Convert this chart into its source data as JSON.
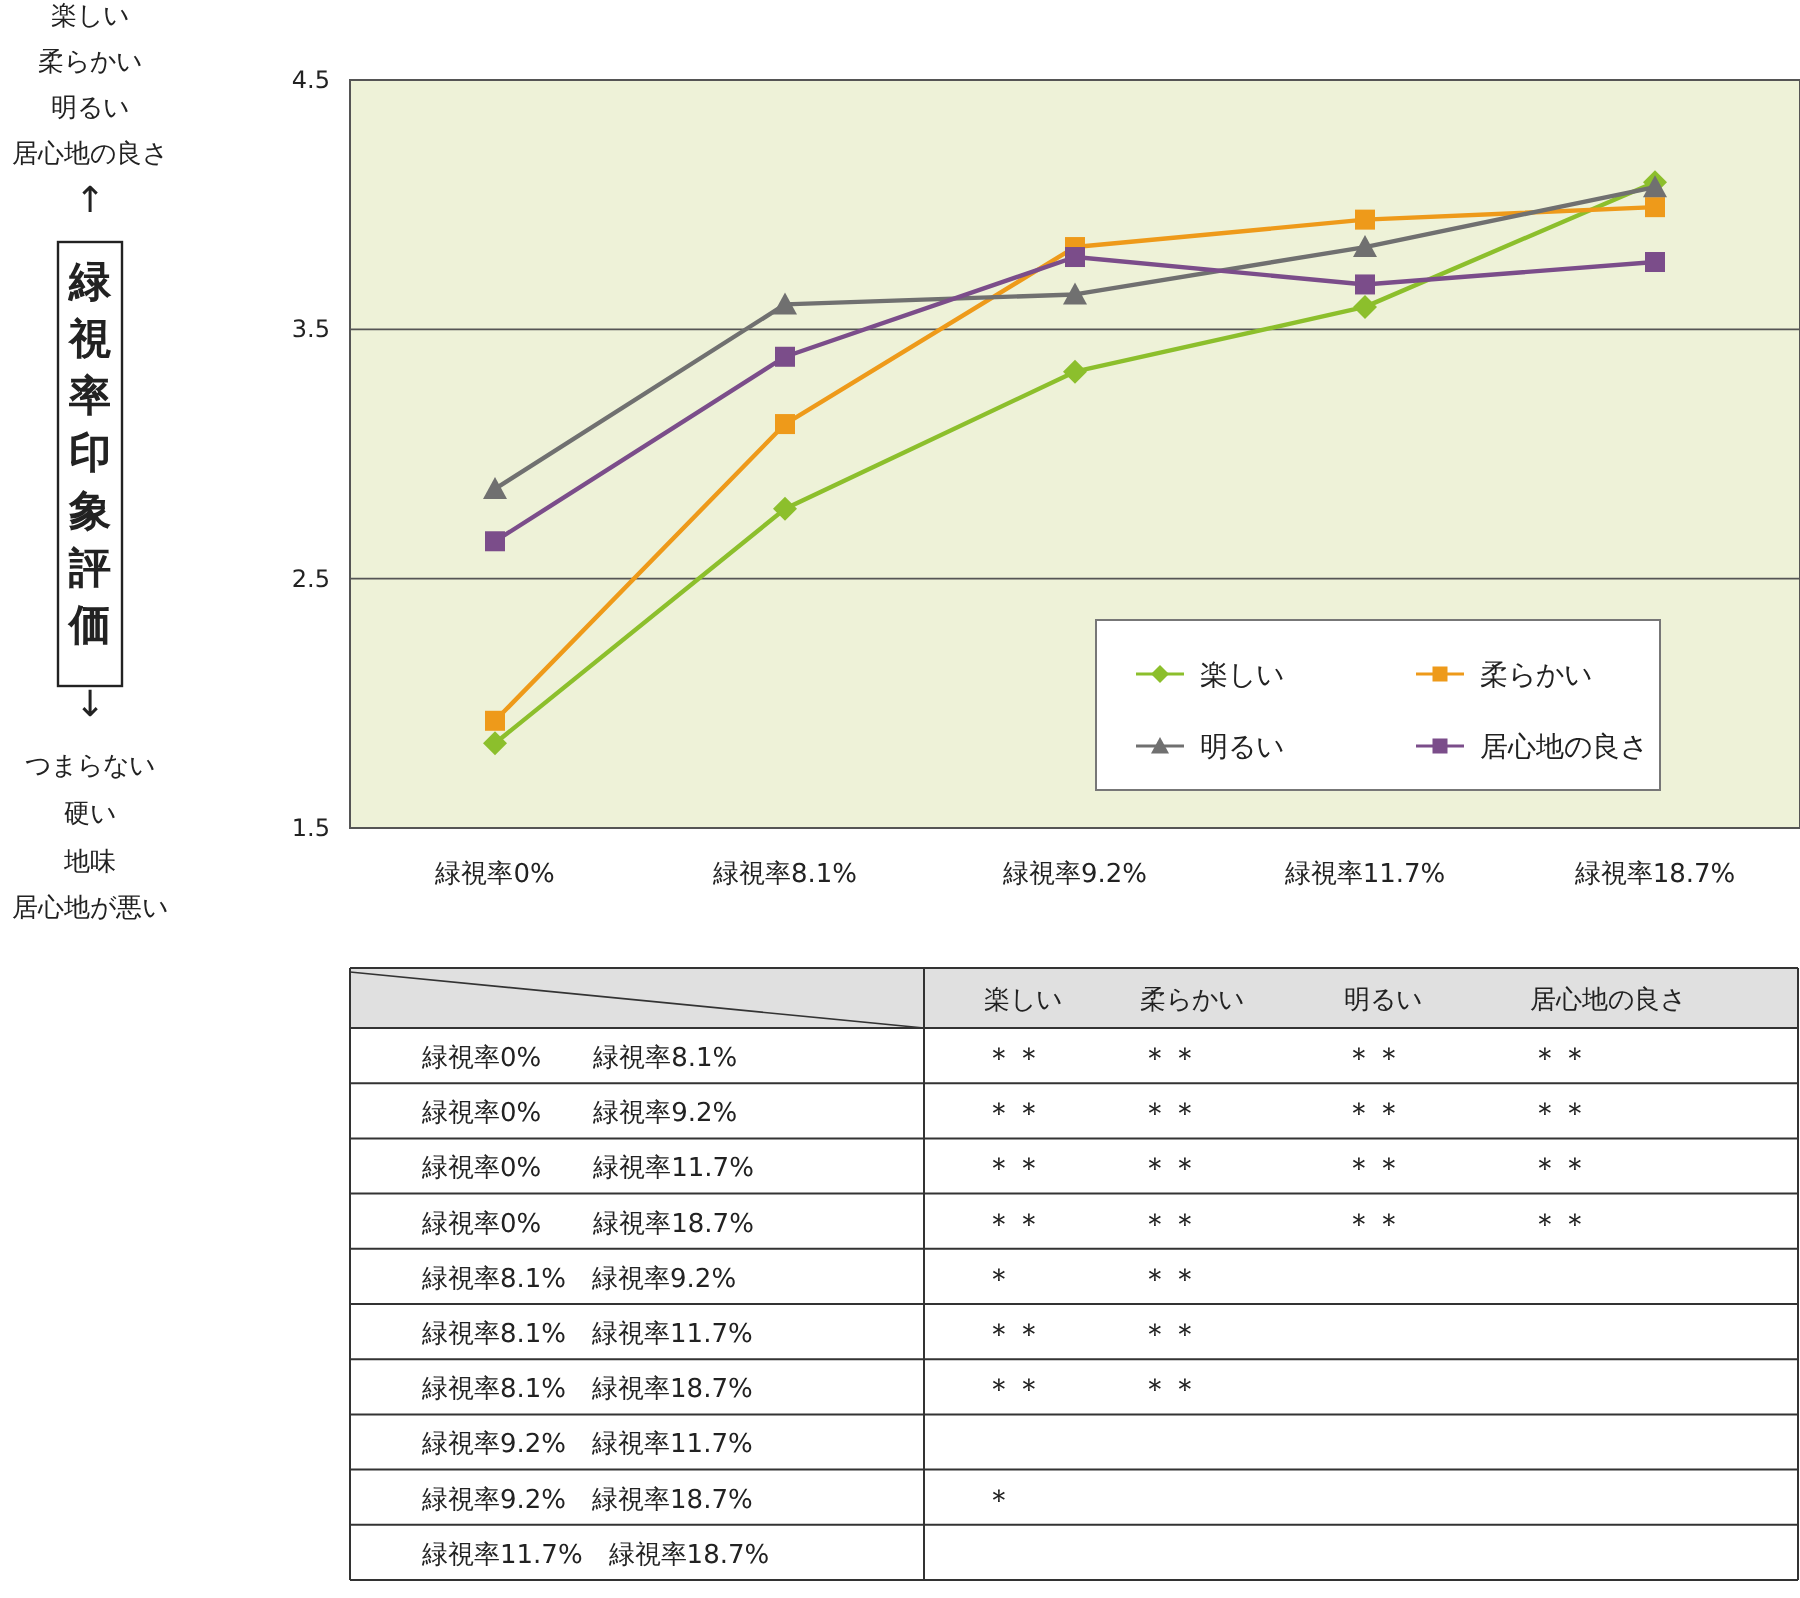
{
  "chart_data": [
    {
      "type": "line",
      "ylabel": "緑視率印象評価",
      "categories": [
        "緑視率0%",
        "緑視率8.1%",
        "緑視率9.2%",
        "緑視率11.7%",
        "緑視率18.7%"
      ],
      "series": [
        {
          "name": "楽しい",
          "color": "#8cbf2c",
          "marker": "diamond",
          "values": [
            1.84,
            2.78,
            3.33,
            3.59,
            4.09
          ]
        },
        {
          "name": "柔らかい",
          "color": "#ee9a1a",
          "marker": "square",
          "values": [
            1.93,
            3.12,
            3.83,
            3.94,
            3.99
          ]
        },
        {
          "name": "明るい",
          "color": "#707070",
          "marker": "triangle",
          "values": [
            2.86,
            3.6,
            3.64,
            3.83,
            4.07
          ]
        },
        {
          "name": "居心地の良さ",
          "color": "#7b4d8a",
          "marker": "square",
          "values": [
            2.65,
            3.39,
            3.79,
            3.68,
            3.77
          ]
        }
      ],
      "ylim": [
        1.5,
        4.5
      ],
      "yticks": [
        1.5,
        2.5,
        3.5,
        4.5
      ],
      "grid": "y",
      "legend": "bottom right",
      "line_style": "solid",
      "annotations": [
        "楽しい",
        "柔らかい",
        "明るい",
        "居心地の良さ",
        "↑",
        "↓",
        "つまらない",
        "硬い",
        "地味",
        "居心地が悪い"
      ]
    },
    {
      "type": "heatmap",
      "categories": [
        "楽しい",
        "柔らかい",
        "明るい",
        "居心地の良さ"
      ],
      "y_categories": [
        "緑視率0%　　緑視率8.1%",
        "緑視率0%　　緑視率9.2%",
        "緑視率0%　　緑視率11.7%",
        "緑視率0%　　緑視率18.7%",
        "緑視率8.1%　緑視率9.2%",
        "緑視率8.1%　緑視率11.7%",
        "緑視率8.1%　緑視率18.7%",
        "緑視率9.2%　緑視率11.7%",
        "緑視率9.2%　緑視率18.7%",
        "緑視率11.7%　緑視率18.7%"
      ],
      "cells": [
        [
          null,
          null,
          null,
          null
        ],
        [
          null,
          null,
          null,
          null
        ],
        [
          null,
          null,
          null,
          null
        ],
        [
          null,
          null,
          null,
          null
        ],
        [
          null,
          null,
          null,
          null
        ],
        [
          null,
          null,
          null,
          null
        ],
        [
          null,
          null,
          null,
          null
        ],
        [
          null,
          null,
          null,
          null
        ],
        [
          null,
          null,
          null,
          null
        ],
        [
          null,
          null,
          null,
          null
        ]
      ],
      "cell_labels": [
        [
          "＊＊",
          "＊＊",
          "＊＊",
          "＊＊"
        ],
        [
          "＊＊",
          "＊＊",
          "＊＊",
          "＊＊"
        ],
        [
          "＊＊",
          "＊＊",
          "＊＊",
          "＊＊"
        ],
        [
          "＊＊",
          "＊＊",
          "＊＊",
          "＊＊"
        ],
        [
          "＊",
          "＊＊",
          null,
          null
        ],
        [
          "＊＊",
          "＊＊",
          null,
          null
        ],
        [
          "＊＊",
          "＊＊",
          null,
          null
        ],
        [
          null,
          null,
          null,
          null
        ],
        [
          "＊",
          null,
          null,
          null
        ],
        [
          null,
          null,
          null,
          null
        ]
      ]
    }
  ]
}
